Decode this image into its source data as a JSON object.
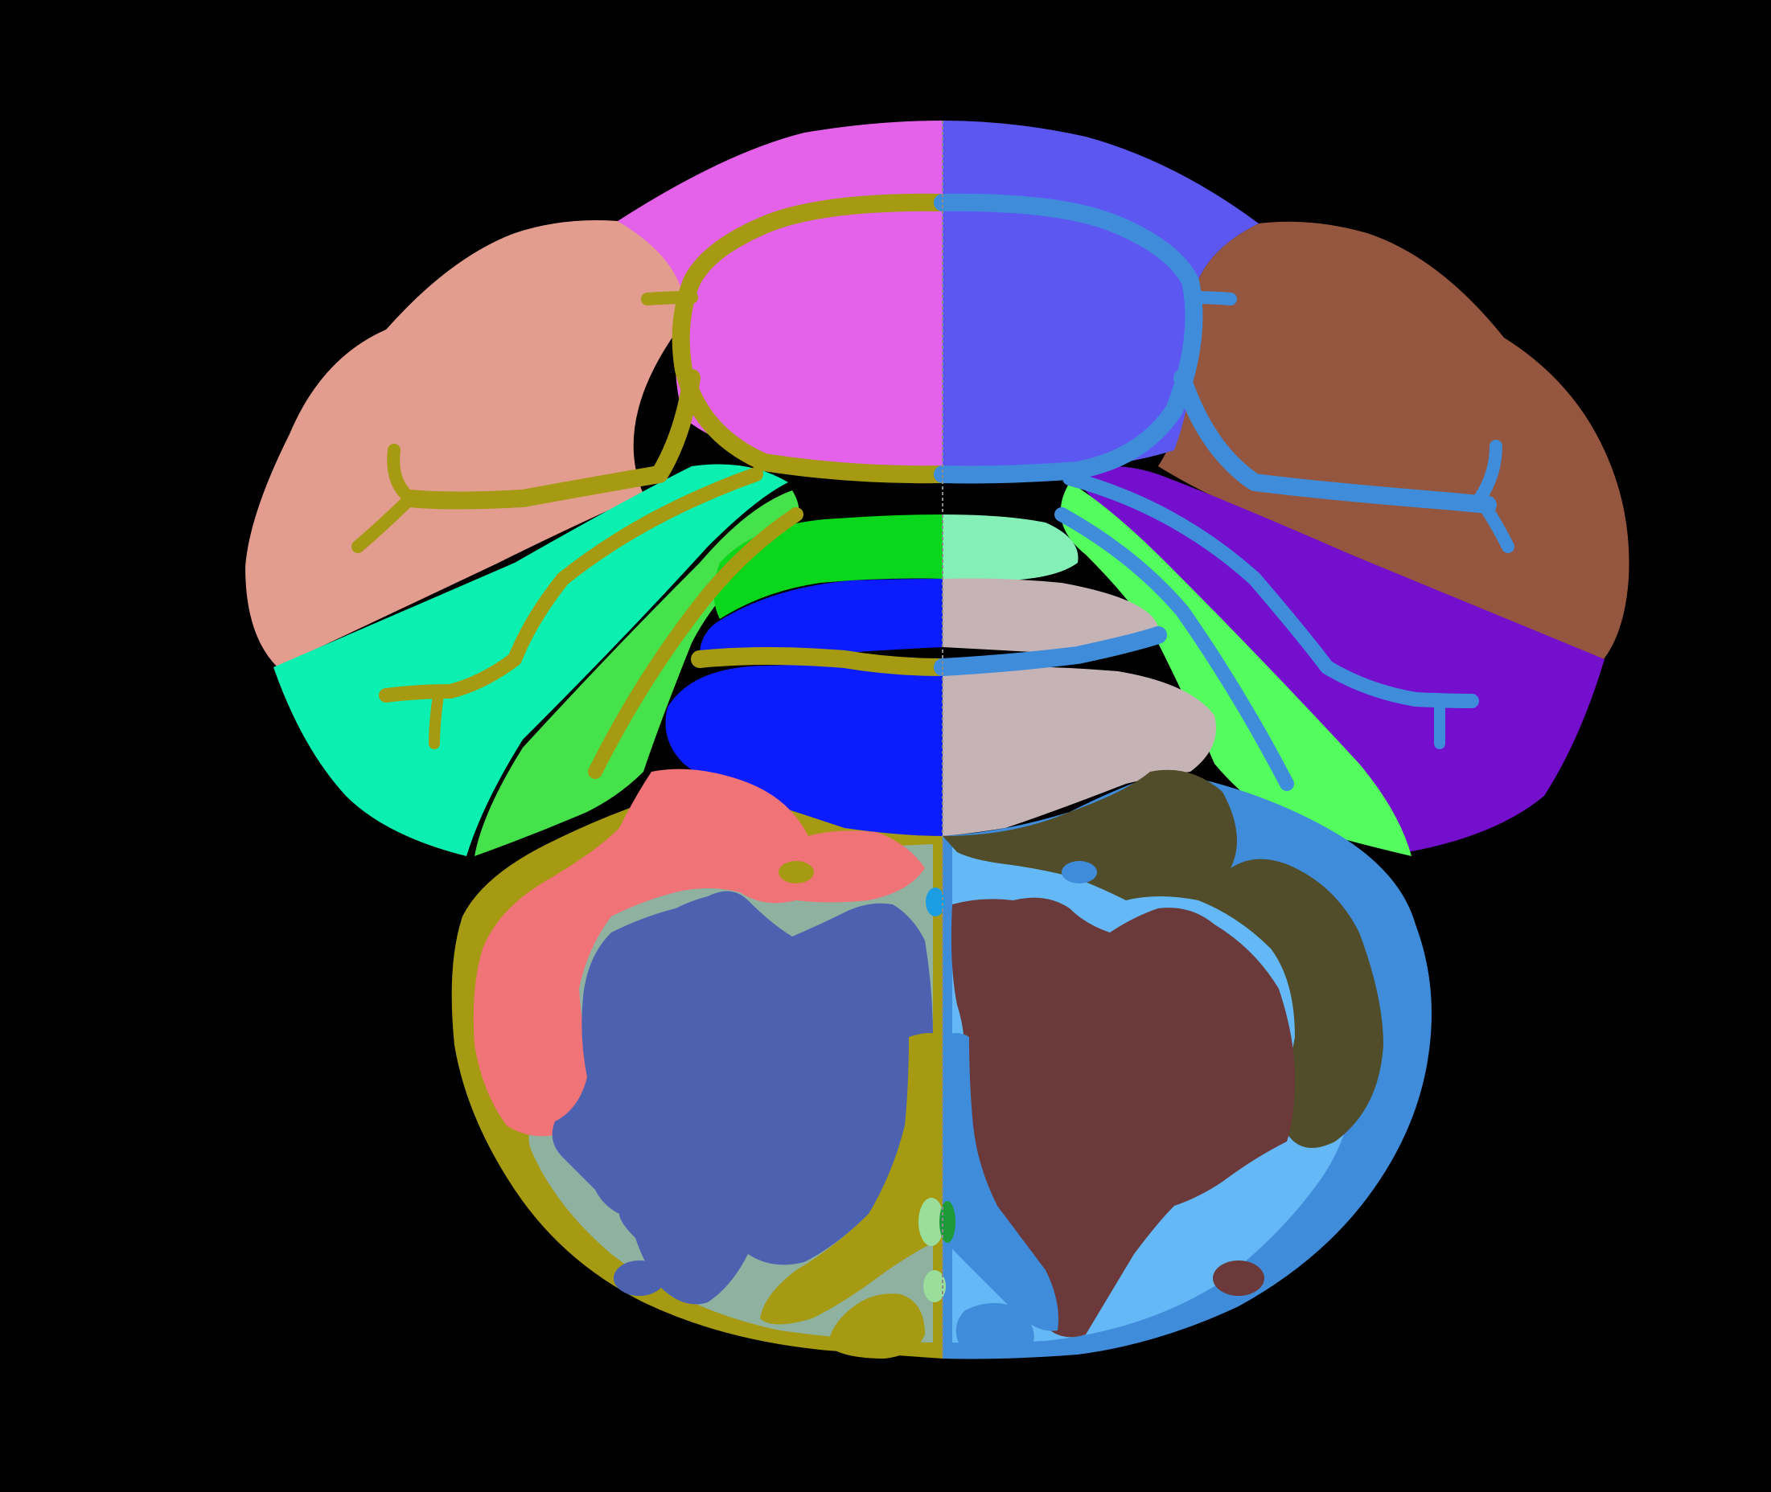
{
  "view": {
    "background": "#000000",
    "kind": "segmented-brain-section",
    "regions": [
      {
        "id": "dorsal-left",
        "color": "#E462EA"
      },
      {
        "id": "dorsal-right",
        "color": "#5D57F2"
      },
      {
        "id": "lateral-upper-left",
        "color": "#E39D8E"
      },
      {
        "id": "lateral-upper-right",
        "color": "#94563F"
      },
      {
        "id": "lateral-lower-left",
        "color": "#0BF0B0"
      },
      {
        "id": "lateral-lower-right",
        "color": "#730FCD"
      },
      {
        "id": "mid-band-left",
        "color": "#46E24B"
      },
      {
        "id": "mid-band-right",
        "color": "#52FD5D"
      },
      {
        "id": "central-upper-left",
        "color": "#0AD61B"
      },
      {
        "id": "central-upper-right",
        "color": "#84F0B8"
      },
      {
        "id": "central-lower-left",
        "color": "#0B1DFE"
      },
      {
        "id": "central-lower-right",
        "color": "#C5B3B6"
      },
      {
        "id": "ventral-outer-left",
        "color": "#F07378"
      },
      {
        "id": "ventral-outer-right",
        "color": "#514C29"
      },
      {
        "id": "ventral-core-left",
        "color": "#4C62B1"
      },
      {
        "id": "ventral-core-right",
        "color": "#6C393A"
      },
      {
        "id": "boundary-left",
        "color": "#A59A12"
      },
      {
        "id": "boundary-right",
        "color": "#3F8DDA"
      },
      {
        "id": "background-tissue-left",
        "color": "#8FB1A0"
      },
      {
        "id": "background-tissue-right",
        "color": "#64B8F6"
      },
      {
        "id": "small-nucleus-left",
        "color": "#9BDE9B"
      },
      {
        "id": "small-nucleus-center",
        "color": "#1A9DE2"
      },
      {
        "id": "small-nucleus-green",
        "color": "#1F9A3A"
      }
    ]
  }
}
